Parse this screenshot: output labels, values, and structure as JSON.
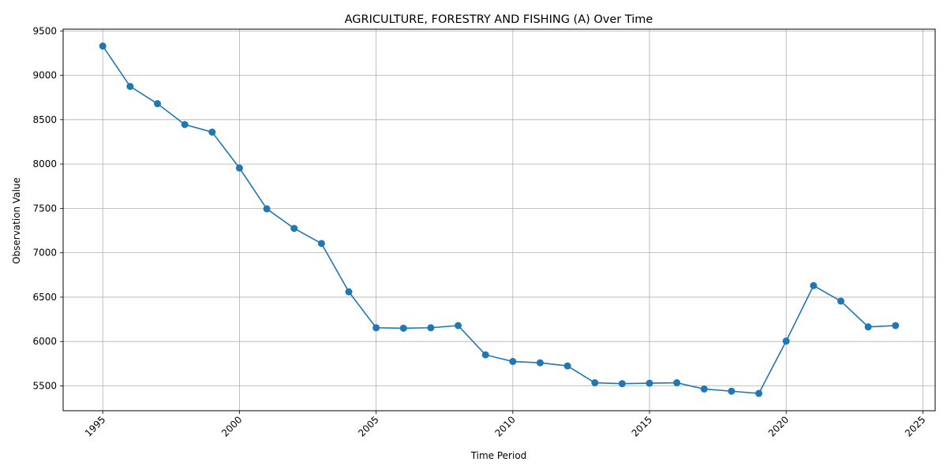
{
  "chart_data": {
    "type": "line",
    "title": "AGRICULTURE, FORESTRY AND FISHING (A) Over Time",
    "xlabel": "Time Period",
    "ylabel": "Observation Value",
    "xlim": [
      1993.55,
      2025.45
    ],
    "ylim": [
      5220,
      9520
    ],
    "xticks": [
      1995,
      2000,
      2005,
      2010,
      2015,
      2020,
      2025
    ],
    "yticks": [
      5500,
      6000,
      6500,
      7000,
      7500,
      8000,
      8500,
      9000,
      9500
    ],
    "grid": true,
    "line_color": "#1f77b4",
    "series": [
      {
        "x": [
          1995,
          1996,
          1997,
          1998,
          1999,
          2000,
          2001,
          2002,
          2003,
          2004,
          2005,
          2006,
          2007,
          2008,
          2009,
          2010,
          2011,
          2012,
          2013,
          2014,
          2015,
          2016,
          2017,
          2018,
          2019,
          2020,
          2021,
          2022,
          2023,
          2024
        ],
        "values": [
          9330,
          8875,
          8680,
          8445,
          8360,
          7955,
          7495,
          7275,
          7105,
          6560,
          6155,
          6150,
          6155,
          6180,
          5850,
          5775,
          5760,
          5725,
          5535,
          5525,
          5530,
          5535,
          5465,
          5440,
          5415,
          6005,
          6630,
          6455,
          6165,
          6180
        ]
      }
    ]
  }
}
